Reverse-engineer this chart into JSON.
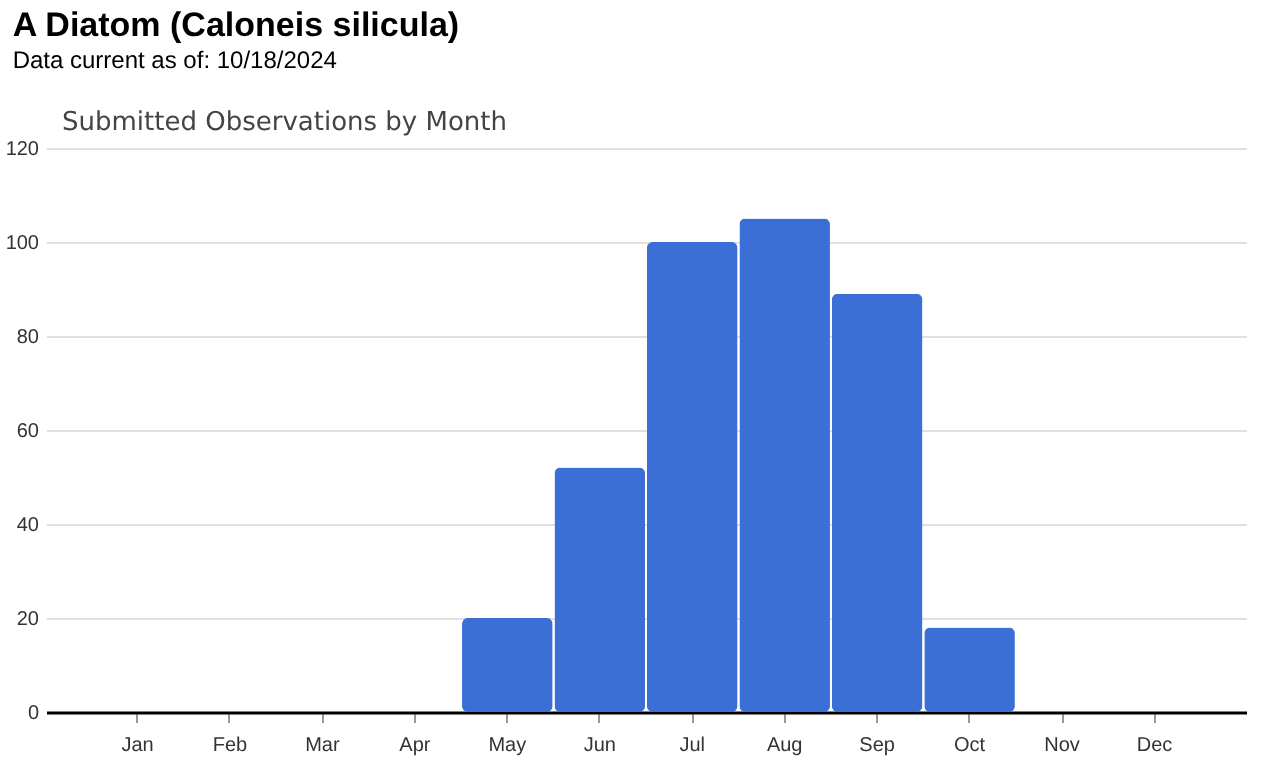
{
  "chart_data": {
    "type": "bar",
    "title": "A Diatom   (Caloneis silicula)",
    "subtitle": "Data current as of: 10/18/2024",
    "annotations": [
      "Submitted Observations by Month"
    ],
    "categories": [
      "Jan",
      "Feb",
      "Mar",
      "Apr",
      "May",
      "Jun",
      "Jul",
      "Aug",
      "Sep",
      "Oct",
      "Nov",
      "Dec"
    ],
    "values": [
      0,
      0,
      0,
      0,
      20,
      52,
      100,
      105,
      89,
      18,
      0,
      0
    ],
    "color": "#3b6fd6",
    "ylim": [
      0,
      120
    ],
    "yticks": [
      0,
      20,
      40,
      60,
      80,
      100,
      120
    ],
    "grid": "y"
  }
}
